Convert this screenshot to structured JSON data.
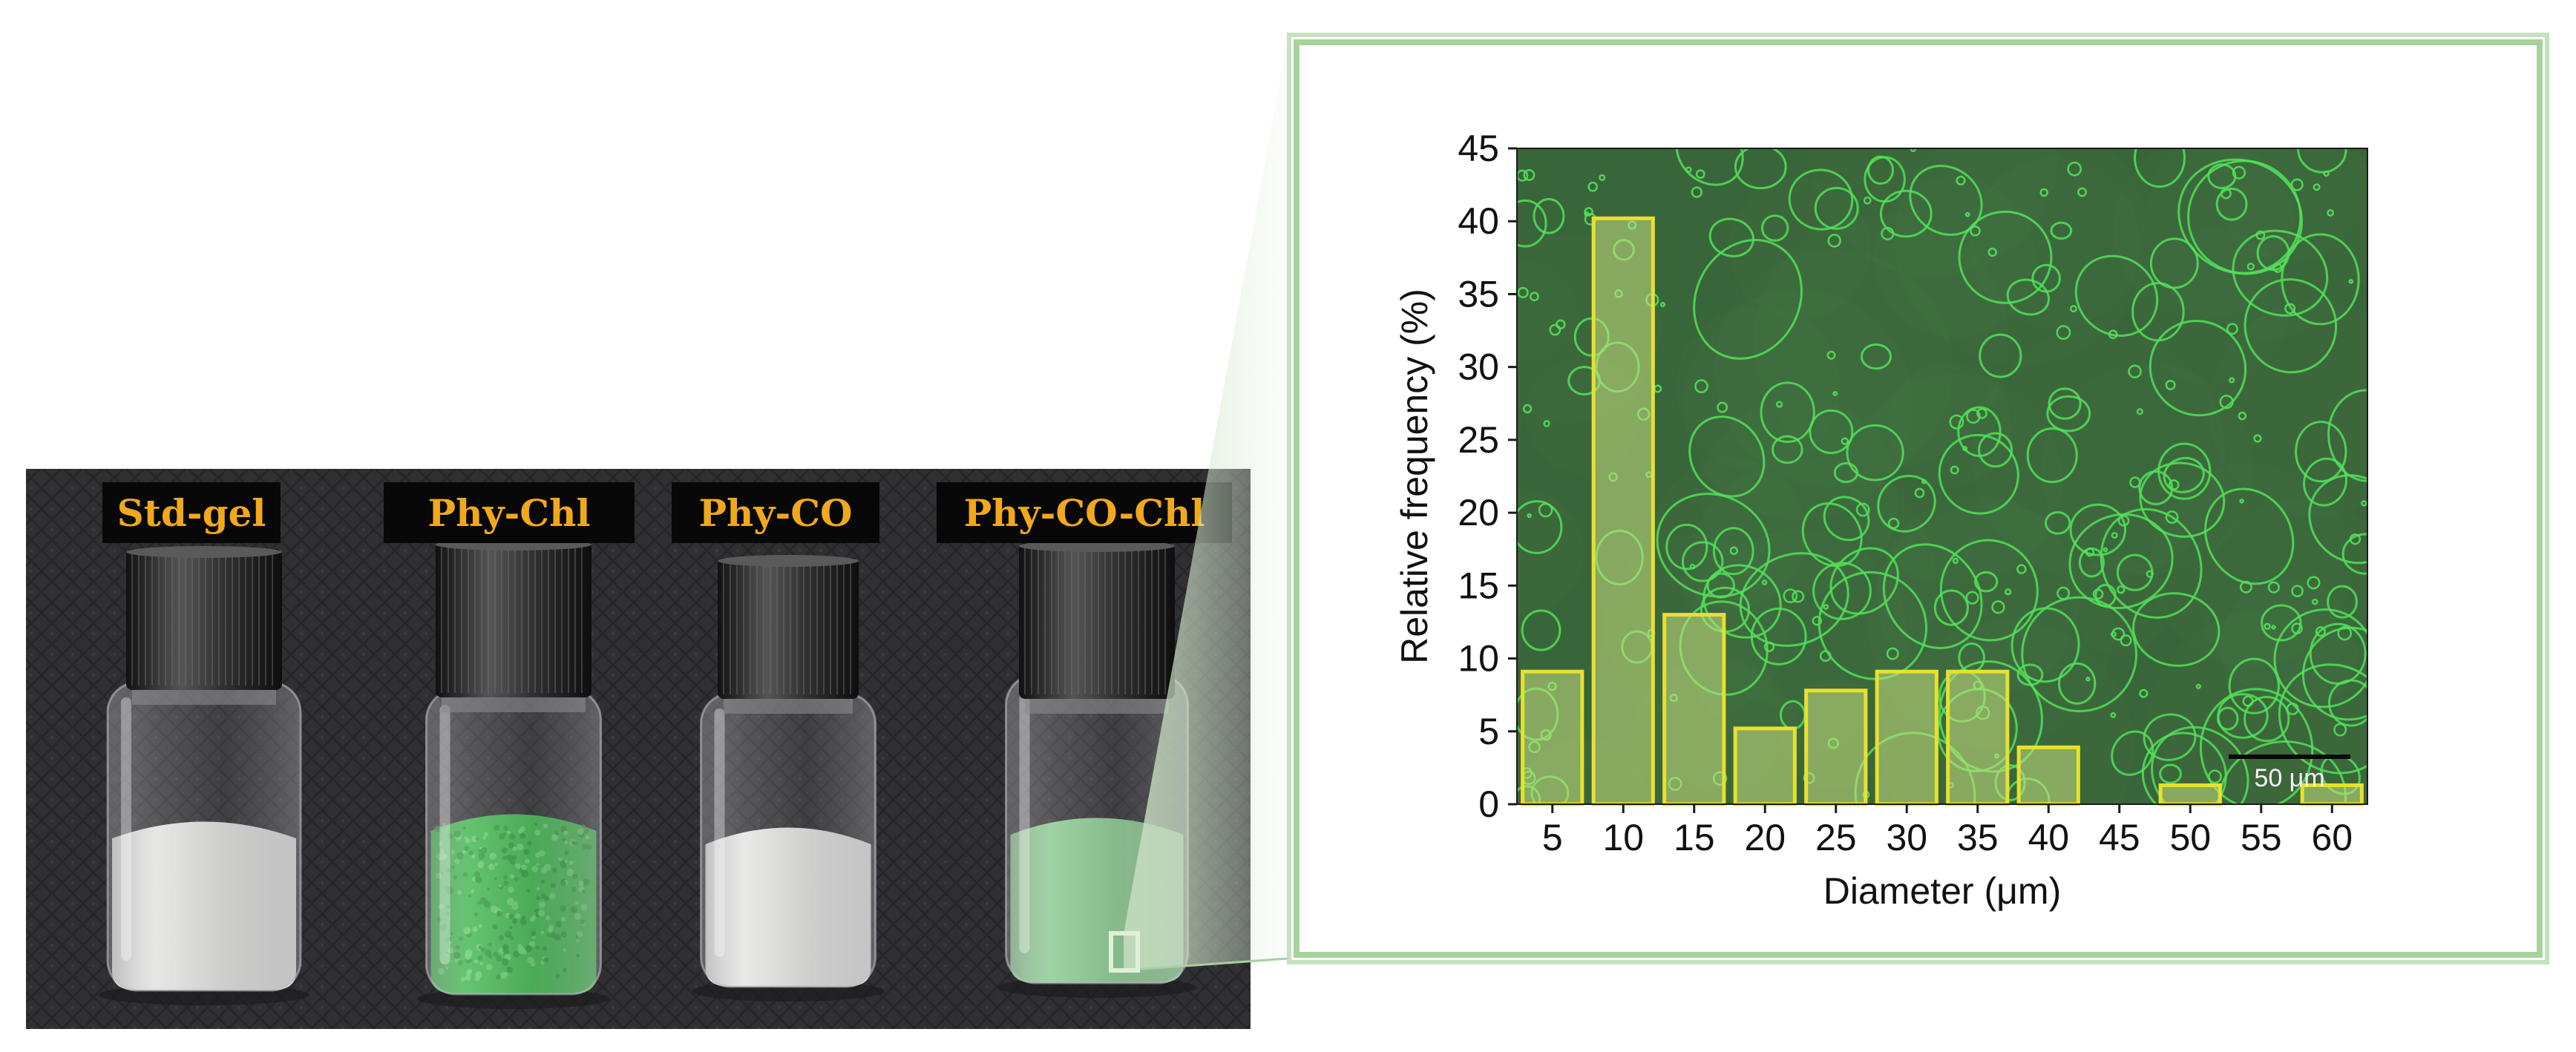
{
  "photo": {
    "vial_labels": [
      "Std-gel",
      "Phy-Chl",
      "Phy-CO",
      "Phy-CO-Chl"
    ],
    "vial_fill_colors": [
      "#eeeeea",
      "#3fbf4c",
      "#f1f1ee",
      "#8fd392"
    ],
    "cap_colors": [
      "#232323",
      "#2b2b2b",
      "#262626",
      "#3a3a3a"
    ],
    "label_color": "#f0a81c",
    "background": "#38383b"
  },
  "micrograph": {
    "scale_bar_label": "50 μm",
    "background": "#3c6b3e",
    "droplet_color": "#54e05a"
  },
  "chart_data": {
    "type": "bar",
    "title": "",
    "xlabel": "Diameter (μm)",
    "ylabel": "Relative frequency (%)",
    "categories": [
      "5",
      "10",
      "15",
      "20",
      "25",
      "30",
      "35",
      "40",
      "45",
      "50",
      "55",
      "60"
    ],
    "values": [
      9.1,
      40.2,
      13.0,
      5.2,
      7.8,
      9.1,
      9.1,
      3.9,
      0,
      1.3,
      0,
      1.3
    ],
    "ylim": [
      0,
      45
    ],
    "yticks": [
      0,
      5,
      10,
      15,
      20,
      25,
      30,
      35,
      40,
      45
    ],
    "grid": false,
    "bar_color": "#c8e07f",
    "bar_edge_color": "#e8e030"
  }
}
